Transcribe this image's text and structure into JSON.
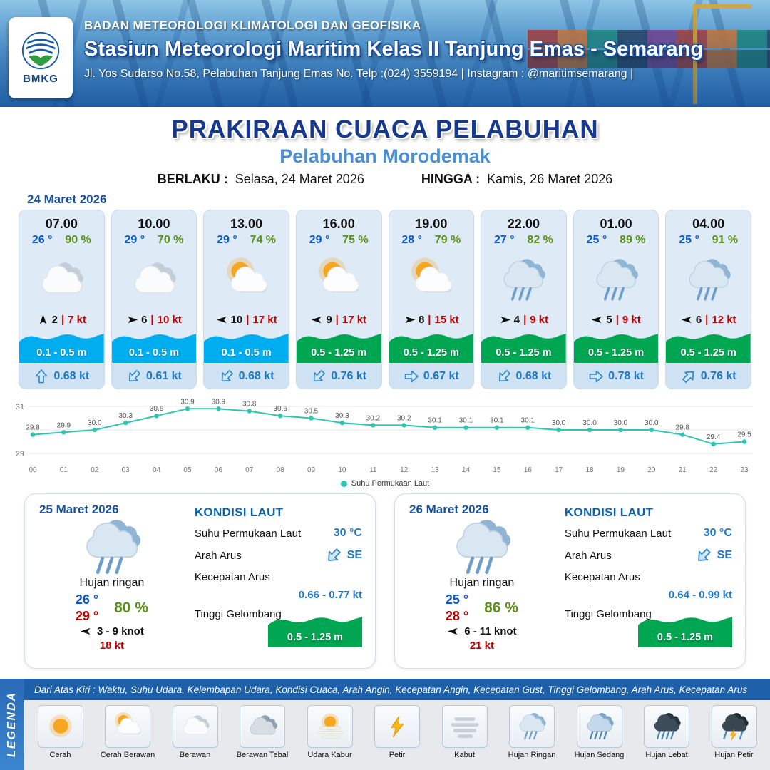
{
  "header": {
    "logo_text": "BMKG",
    "org": "BADAN METEOROLOGI KLIMATOLOGI DAN GEOFISIKA",
    "station": "Stasiun Meteorologi Maritim Kelas II Tanjung Emas - Semarang",
    "address": "Jl. Yos Sudarso No.58, Pelabuhan Tanjung Emas No. Telp :(024) 3559194 | Instagram : @maritimsemarang |"
  },
  "title_block": {
    "main": "PRAKIRAAN CUACA PELABUHAN",
    "subtitle": "Pelabuhan Morodemak",
    "berlaku_label": "BERLAKU :",
    "berlaku_value": "Selasa, 24 Maret 2026",
    "hingga_label": "HINGGA :",
    "hingga_value": "Kamis, 26 Maret 2026"
  },
  "day1": {
    "date": "24 Maret 2026",
    "cards": [
      {
        "time": "07.00",
        "temp": "26 °",
        "humidity": "90 %",
        "icon": "berawan",
        "wind_deg": 0,
        "wind_speed": "2",
        "gust": "7 kt",
        "wave": "0.1 - 0.5 m",
        "wave_level": "low",
        "current_deg": 0,
        "current": "0.68 kt"
      },
      {
        "time": "10.00",
        "temp": "29 °",
        "humidity": "70 %",
        "icon": "berawan",
        "wind_deg": 90,
        "wind_speed": "6",
        "gust": "10 kt",
        "wave": "0.1 - 0.5 m",
        "wave_level": "low",
        "current_deg": 225,
        "current": "0.61 kt"
      },
      {
        "time": "13.00",
        "temp": "29 °",
        "humidity": "74 %",
        "icon": "cerah-berawan",
        "wind_deg": 270,
        "wind_speed": "10",
        "gust": "17 kt",
        "wave": "0.1 - 0.5 m",
        "wave_level": "low",
        "current_deg": 225,
        "current": "0.68 kt"
      },
      {
        "time": "16.00",
        "temp": "29 °",
        "humidity": "75 %",
        "icon": "cerah-berawan",
        "wind_deg": 270,
        "wind_speed": "9",
        "gust": "17 kt",
        "wave": "0.5 - 1.25 m",
        "wave_level": "mid",
        "current_deg": 225,
        "current": "0.76 kt"
      },
      {
        "time": "19.00",
        "temp": "28 °",
        "humidity": "79 %",
        "icon": "cerah-berawan",
        "wind_deg": 90,
        "wind_speed": "8",
        "gust": "15 kt",
        "wave": "0.5 - 1.25 m",
        "wave_level": "mid",
        "current_deg": 90,
        "current": "0.67 kt"
      },
      {
        "time": "22.00",
        "temp": "27 °",
        "humidity": "82 %",
        "icon": "hujan-ringan",
        "wind_deg": 90,
        "wind_speed": "4",
        "gust": "9 kt",
        "wave": "0.5 - 1.25 m",
        "wave_level": "mid",
        "current_deg": 225,
        "current": "0.68 kt"
      },
      {
        "time": "01.00",
        "temp": "25 °",
        "humidity": "89 %",
        "icon": "hujan-ringan",
        "wind_deg": 270,
        "wind_speed": "5",
        "gust": "9 kt",
        "wave": "0.5 - 1.25 m",
        "wave_level": "mid",
        "current_deg": 90,
        "current": "0.78 kt"
      },
      {
        "time": "04.00",
        "temp": "25 °",
        "humidity": "91 %",
        "icon": "hujan-ringan",
        "wind_deg": 270,
        "wind_speed": "6",
        "gust": "12 kt",
        "wave": "0.5 - 1.25 m",
        "wave_level": "mid",
        "current_deg": 45,
        "current": "0.76 kt"
      }
    ]
  },
  "chart_data": {
    "type": "line",
    "legend": "Suhu Permukaan Laut",
    "x": [
      "00",
      "01",
      "02",
      "03",
      "04",
      "05",
      "06",
      "07",
      "08",
      "09",
      "10",
      "11",
      "12",
      "13",
      "14",
      "15",
      "16",
      "17",
      "18",
      "19",
      "20",
      "21",
      "22",
      "23"
    ],
    "values": [
      29.8,
      29.9,
      30.0,
      30.3,
      30.6,
      30.9,
      30.9,
      30.8,
      30.6,
      30.5,
      30.3,
      30.2,
      30.2,
      30.1,
      30.1,
      30.1,
      30.1,
      30.0,
      30.0,
      30.0,
      30.0,
      29.8,
      29.4,
      29.5
    ],
    "ylim": [
      29,
      31
    ],
    "line_color": "#2fc5b2",
    "grid": true,
    "legend_position": "bottom"
  },
  "daily": [
    {
      "date": "25 Maret 2026",
      "icon": "hujan-ringan",
      "condition": "Hujan ringan",
      "temp_min": "26 °",
      "temp_max": "29 °",
      "humidity": "80 %",
      "wind_deg": 270,
      "wind_range": "3 - 9 knot",
      "gust": "18 kt",
      "sea": {
        "heading": "KONDISI LAUT",
        "sst_label": "Suhu Permukaan Laut",
        "sst": "30 °C",
        "arah_label": "Arah Arus",
        "arah": "SE",
        "arah_deg": 225,
        "kec_label": "Kecepatan Arus",
        "kec": "0.66 - 0.77 kt",
        "gel_label": "Tinggi Gelombang",
        "gel": "0.5 - 1.25 m"
      }
    },
    {
      "date": "26 Maret 2026",
      "icon": "hujan-ringan",
      "condition": "Hujan ringan",
      "temp_min": "25 °",
      "temp_max": "28 °",
      "humidity": "86 %",
      "wind_deg": 270,
      "wind_range": "6 - 11 knot",
      "gust": "21 kt",
      "sea": {
        "heading": "KONDISI LAUT",
        "sst_label": "Suhu Permukaan Laut",
        "sst": "30 °C",
        "arah_label": "Arah Arus",
        "arah": "SE",
        "arah_deg": 225,
        "kec_label": "Kecepatan Arus",
        "kec": "0.64 - 0.99 kt",
        "gel_label": "Tinggi Gelombang",
        "gel": "0.5 - 1.25 m"
      }
    }
  ],
  "legend_bar": {
    "title": "LEGENDA",
    "note": "Dari Atas Kiri : Waktu, Suhu Udara, Kelembapan Udara, Kondisi Cuaca, Arah Angin, Kecepatan Angin, Kecepatan Gust, Tinggi Gelombang, Arah Arus, Kecepatan Arus",
    "items": [
      {
        "label": "Cerah",
        "icon": "cerah"
      },
      {
        "label": "Cerah Berawan",
        "icon": "cerah-berawan"
      },
      {
        "label": "Berawan",
        "icon": "berawan"
      },
      {
        "label": "Berawan Tebal",
        "icon": "berawan-tebal"
      },
      {
        "label": "Udara Kabur",
        "icon": "udara-kabur"
      },
      {
        "label": "Petir",
        "icon": "petir"
      },
      {
        "label": "Kabut",
        "icon": "kabut"
      },
      {
        "label": "Hujan Ringan",
        "icon": "hujan-ringan"
      },
      {
        "label": "Hujan Sedang",
        "icon": "hujan-sedang"
      },
      {
        "label": "Hujan Lebat",
        "icon": "hujan-lebat"
      },
      {
        "label": "Hujan Petir",
        "icon": "hujan-petir"
      }
    ]
  },
  "colors": {
    "temp_blue": "#0a58c8",
    "humidity_green": "#5a8f1a",
    "wind_red": "#c00000",
    "wave_low": "#00aeef",
    "wave_mid": "#00a651",
    "current_blue": "#1e78c8",
    "date_blue": "#17509e",
    "chart_line": "#2fc5b2"
  }
}
